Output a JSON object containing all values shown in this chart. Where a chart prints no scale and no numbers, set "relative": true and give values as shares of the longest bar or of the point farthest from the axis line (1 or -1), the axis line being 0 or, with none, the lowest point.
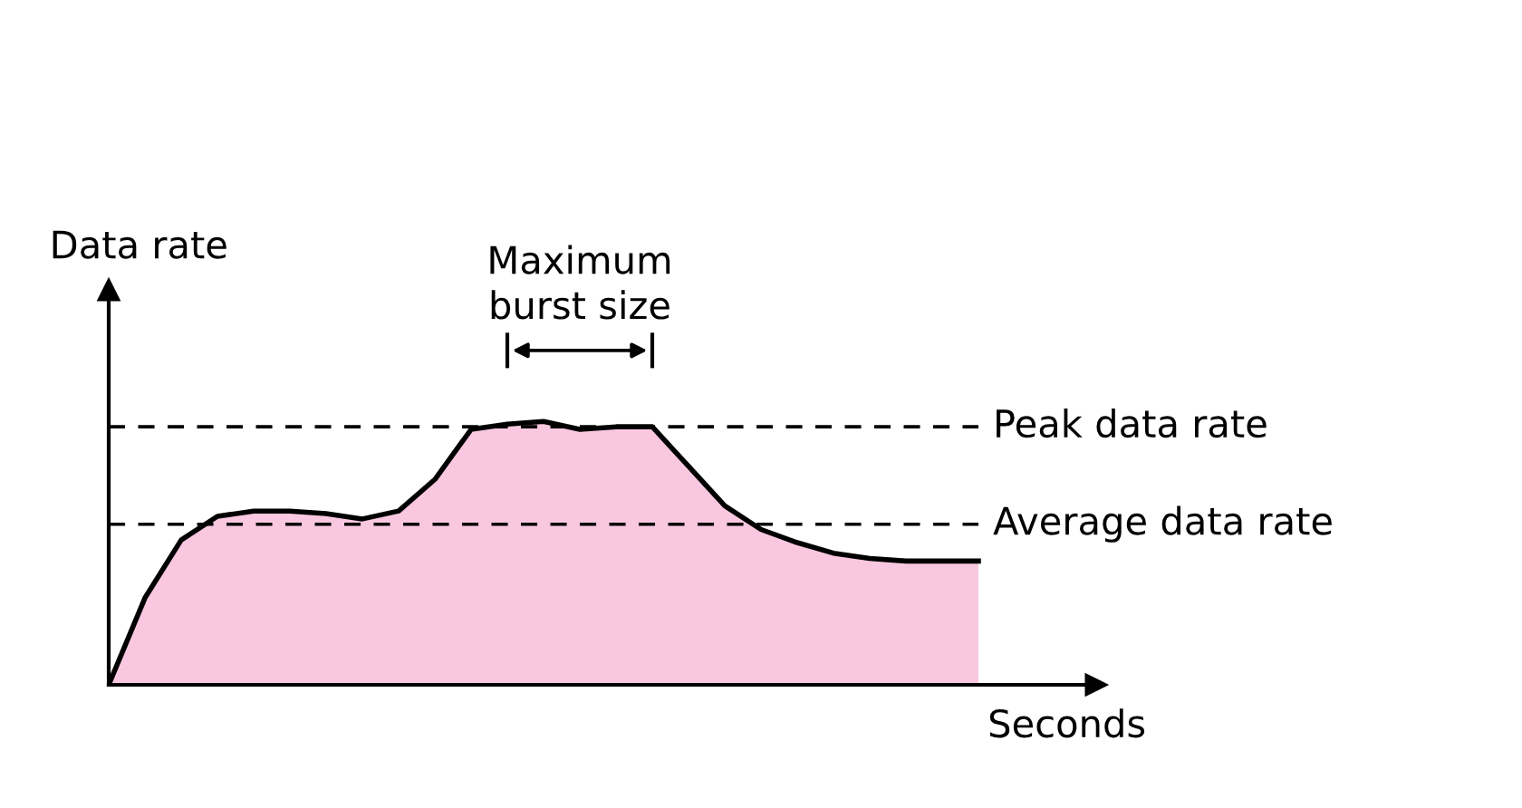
{
  "chart_data": {
    "type": "area",
    "relative": true,
    "xlabel": "Seconds",
    "ylabel": "Data rate",
    "color": "#f9c8e0",
    "categories": [
      null,
      null,
      null,
      null,
      null,
      null,
      null,
      null,
      null,
      null,
      null,
      null,
      null,
      null,
      null,
      null,
      null,
      null,
      null,
      null,
      null,
      null,
      null,
      null,
      null
    ],
    "values": [
      0,
      0.33,
      0.55,
      0.64,
      0.66,
      0.66,
      0.65,
      0.63,
      0.66,
      0.78,
      0.97,
      0.99,
      1.0,
      0.97,
      0.98,
      0.98,
      0.83,
      0.68,
      0.59,
      0.54,
      0.5,
      0.48,
      0.47,
      0.47,
      0.47
    ],
    "ref_lines": [
      {
        "axis": "y",
        "value": 0.98,
        "label": "Peak data rate",
        "line_style": "dashed",
        "color": "#000000"
      },
      {
        "axis": "y",
        "value": 0.61,
        "label": "Average data rate",
        "line_style": "dashed",
        "color": "#000000"
      }
    ],
    "annotations": [
      "Maximum burst size"
    ],
    "line_style": "solid"
  }
}
